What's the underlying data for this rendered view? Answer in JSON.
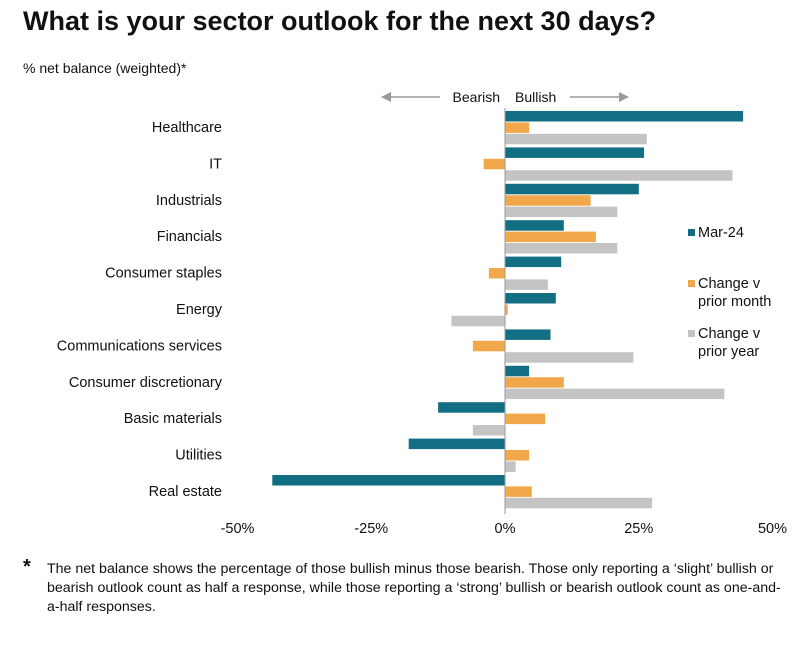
{
  "chart_data": {
    "type": "bar",
    "orientation": "horizontal",
    "title": "What is your sector outlook for the next 30 days?",
    "subtitle": "% net balance (weighted)*",
    "direction_labels": {
      "left": "Bearish",
      "right": "Bullish"
    },
    "categories": [
      "Healthcare",
      "IT",
      "Industrials",
      "Financials",
      "Consumer staples",
      "Energy",
      "Communications services",
      "Consumer discretionary",
      "Basic materials",
      "Utilities",
      "Real estate"
    ],
    "series": [
      {
        "name": "Mar-24",
        "color": "#126e82",
        "values": [
          44.5,
          26,
          25,
          11,
          10.5,
          9.5,
          8.5,
          4.5,
          -12.5,
          -18,
          -43.5
        ]
      },
      {
        "name": "Change v prior month",
        "color": "#f0a84a",
        "values": [
          4.5,
          -4,
          16,
          17,
          -3,
          0.5,
          -6,
          11,
          7.5,
          4.5,
          5
        ]
      },
      {
        "name": "Change v prior year",
        "color": "#c4c4c4",
        "values": [
          26.5,
          42.5,
          21,
          21,
          8,
          -10,
          24,
          41,
          -6,
          2,
          27.5
        ]
      }
    ],
    "xlim": [
      -50,
      50
    ],
    "xticks": [
      -50,
      -25,
      0,
      25,
      50
    ],
    "xtick_labels": [
      "-50%",
      "-25%",
      "0%",
      "25%",
      "50%"
    ],
    "legend_position": "right"
  },
  "footnote": {
    "marker": "*",
    "text": "The net balance shows the percentage of those bullish minus those bearish. Those only reporting a ‘slight’ bullish or bearish outlook count as half a response, while those reporting a ‘strong’ bullish or bearish outlook count as one-and-a-half responses."
  }
}
